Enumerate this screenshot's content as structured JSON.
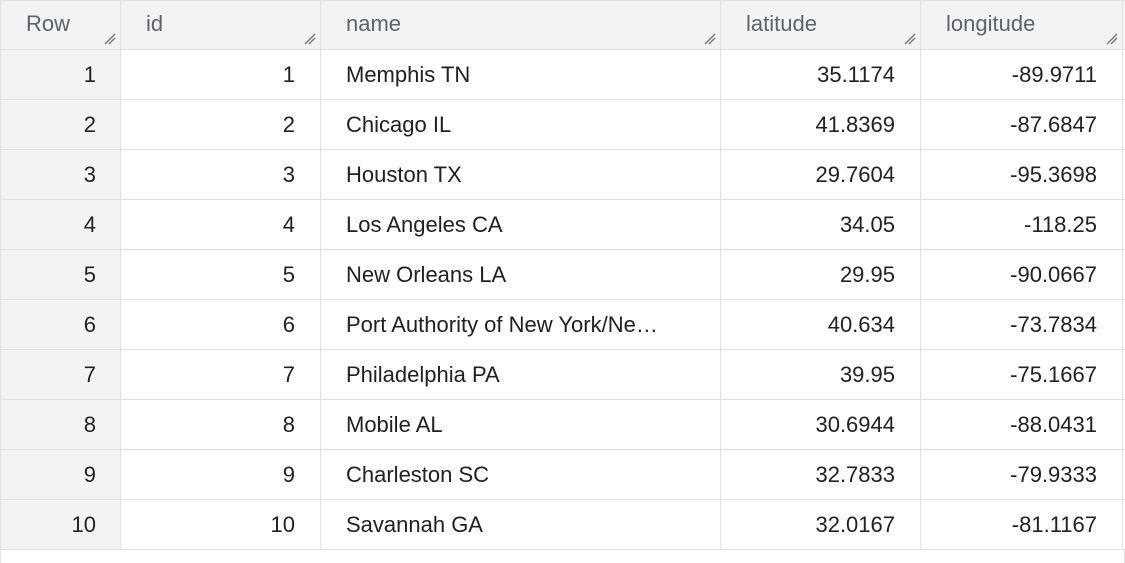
{
  "table": {
    "columns": [
      {
        "key": "row",
        "label": "Row"
      },
      {
        "key": "id",
        "label": "id"
      },
      {
        "key": "name",
        "label": "name"
      },
      {
        "key": "latitude",
        "label": "latitude"
      },
      {
        "key": "longitude",
        "label": "longitude"
      }
    ],
    "rows": [
      {
        "row": "1",
        "id": "1",
        "name": "Memphis TN",
        "latitude": "35.1174",
        "longitude": "-89.9711"
      },
      {
        "row": "2",
        "id": "2",
        "name": "Chicago IL",
        "latitude": "41.8369",
        "longitude": "-87.6847"
      },
      {
        "row": "3",
        "id": "3",
        "name": "Houston TX",
        "latitude": "29.7604",
        "longitude": "-95.3698"
      },
      {
        "row": "4",
        "id": "4",
        "name": "Los Angeles CA",
        "latitude": "34.05",
        "longitude": "-118.25"
      },
      {
        "row": "5",
        "id": "5",
        "name": "New Orleans LA",
        "latitude": "29.95",
        "longitude": "-90.0667"
      },
      {
        "row": "6",
        "id": "6",
        "name": "Port Authority of New York/Ne…",
        "latitude": "40.634",
        "longitude": "-73.7834"
      },
      {
        "row": "7",
        "id": "7",
        "name": "Philadelphia PA",
        "latitude": "39.95",
        "longitude": "-75.1667"
      },
      {
        "row": "8",
        "id": "8",
        "name": "Mobile AL",
        "latitude": "30.6944",
        "longitude": "-88.0431"
      },
      {
        "row": "9",
        "id": "9",
        "name": "Charleston SC",
        "latitude": "32.7833",
        "longitude": "-79.9333"
      },
      {
        "row": "10",
        "id": "10",
        "name": "Savannah GA",
        "latitude": "32.0167",
        "longitude": "-81.1167"
      }
    ]
  },
  "icons": {
    "column_resize": "resize-handle-icon"
  },
  "colors": {
    "header_bg": "#f1f3f4",
    "grid_line": "#e0e0e0",
    "header_text": "#5f6368",
    "body_text": "#202124"
  }
}
